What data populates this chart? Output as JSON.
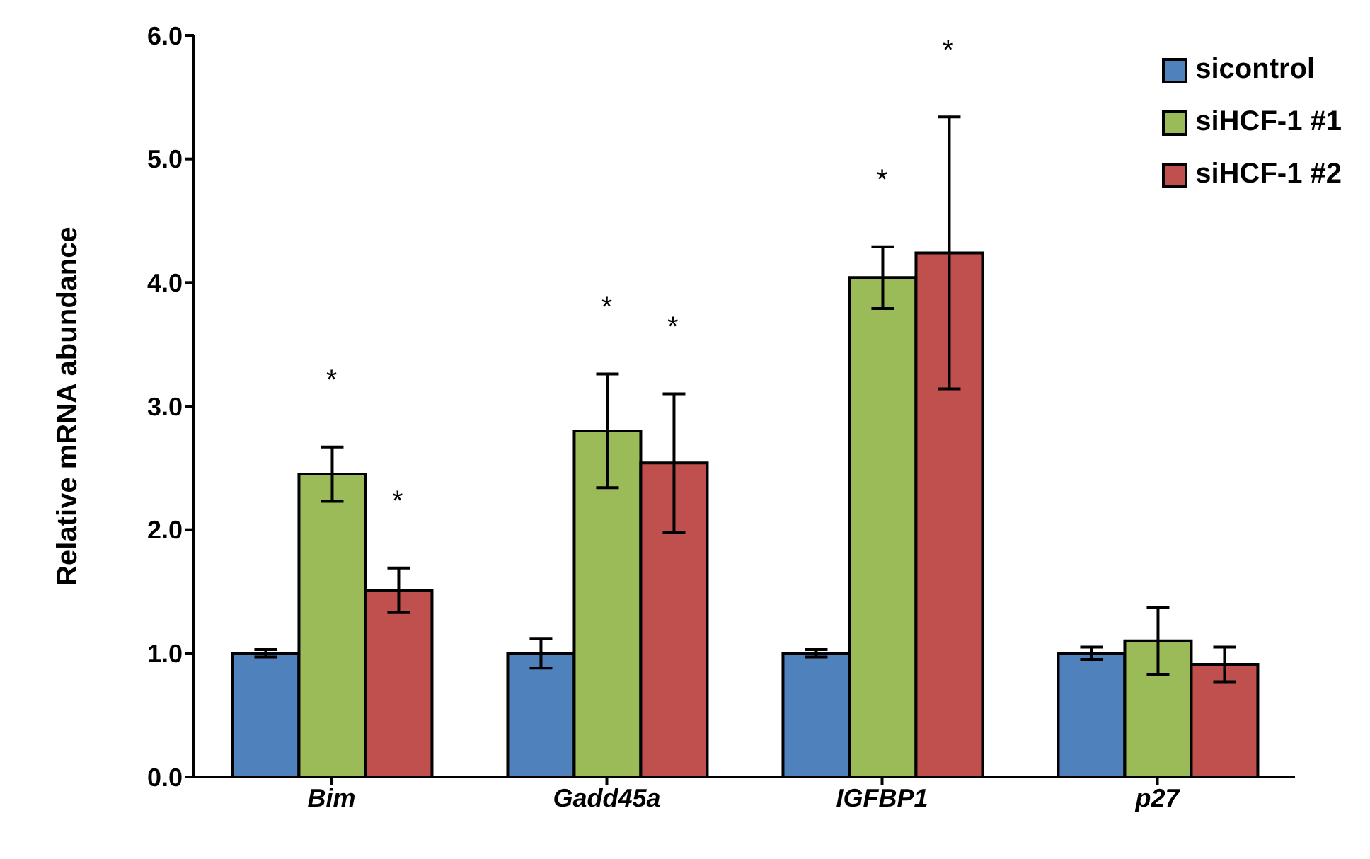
{
  "chart_data": {
    "type": "bar",
    "ylabel": "Relative mRNA abundance",
    "categories": [
      "Bim",
      "Gadd45a",
      "IGFBP1",
      "p27"
    ],
    "series": [
      {
        "name": "sicontrol",
        "color": "#4f81bd",
        "values": [
          1.0,
          1.0,
          1.0,
          1.0
        ],
        "errors": [
          0.03,
          0.12,
          0.03,
          0.05
        ]
      },
      {
        "name": "siHCF-1 #1",
        "color": "#9bbb59",
        "values": [
          2.45,
          2.8,
          4.04,
          1.1
        ],
        "errors": [
          0.22,
          0.46,
          0.25,
          0.27
        ]
      },
      {
        "name": "siHCF-1 #2",
        "color": "#c0504d",
        "values": [
          1.51,
          2.54,
          4.24,
          0.91
        ],
        "errors": [
          0.18,
          0.56,
          1.1,
          0.14
        ]
      }
    ],
    "ylim": [
      0,
      6
    ],
    "yticks": [
      {
        "value": 0,
        "label": "0.0"
      },
      {
        "value": 1,
        "label": "1.0"
      },
      {
        "value": 2,
        "label": "2.0"
      },
      {
        "value": 3,
        "label": "3.0"
      },
      {
        "value": 4,
        "label": "4.0"
      },
      {
        "value": 5,
        "label": "5.0"
      },
      {
        "value": 6,
        "label": "6.0"
      }
    ],
    "annotations": [
      "*",
      "*",
      "*",
      "*",
      "*",
      "*"
    ],
    "legend": "top right",
    "grid": false
  }
}
